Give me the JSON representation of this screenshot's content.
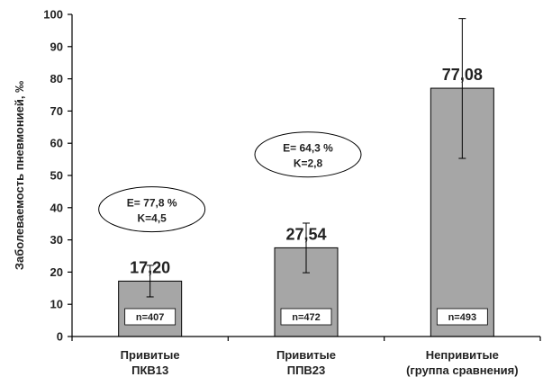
{
  "chart_data": {
    "type": "bar",
    "ylabel": "Заболеваемость пневмонией, ‰",
    "ylim": [
      0,
      100
    ],
    "yticks": [
      0,
      10,
      20,
      30,
      40,
      50,
      60,
      70,
      80,
      90,
      100
    ],
    "grid": false,
    "bar_color": "#a6a6a6",
    "categories": [
      [
        "Привитые",
        "ПКВ13"
      ],
      [
        "Привитые",
        "ППВ23"
      ],
      [
        "Непривитые",
        "(группа сравнения)"
      ]
    ],
    "values": [
      17.2,
      27.54,
      77.08
    ],
    "value_labels": [
      "17,20",
      "27,54",
      "77,08"
    ],
    "error_bars": [
      [
        12.3,
        22.1
      ],
      [
        19.8,
        35.2
      ],
      [
        55.3,
        98.7
      ]
    ],
    "n_labels": [
      "n=407",
      "n=472",
      "n=493"
    ],
    "annotations": [
      {
        "bar": 0,
        "lines": [
          "E= 77,8 %",
          "K=4,5"
        ],
        "y": 39.5
      },
      {
        "bar": 1,
        "lines": [
          "E= 64,3 %",
          "K=2,8"
        ],
        "y": 56.5
      }
    ]
  }
}
